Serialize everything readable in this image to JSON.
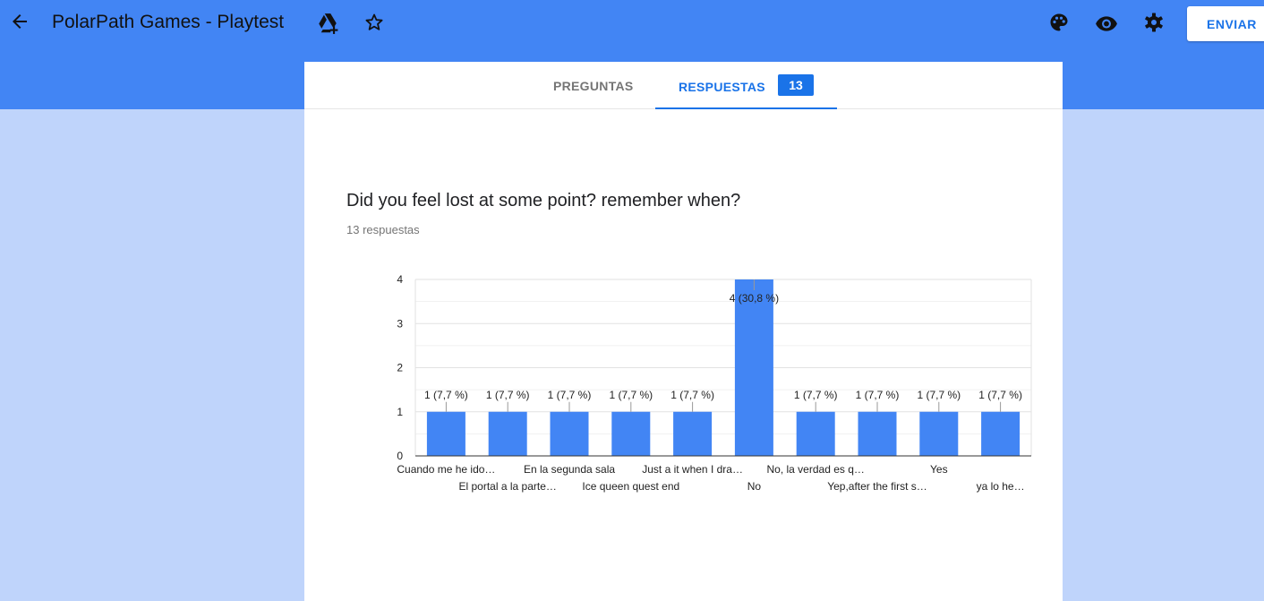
{
  "header": {
    "title": "PolarPath Games - Playtest",
    "send_label": "ENVIAR",
    "icons": [
      "back-arrow-icon",
      "drive-add-icon",
      "star-icon",
      "palette-icon",
      "eye-icon",
      "gear-icon"
    ]
  },
  "tabs": {
    "questions_label": "PREGUNTAS",
    "responses_label": "RESPUESTAS",
    "responses_count": "13"
  },
  "question": {
    "title": "Did you feel lost at some point? remember when?",
    "responses_text": "13 respuestas"
  },
  "colors": {
    "accent": "#1a73e8",
    "bar": "#4285f4",
    "header": "#4285f4",
    "page_bg": "#bfd4fb"
  },
  "chart_data": {
    "type": "bar",
    "categories": [
      "Cuando me he ido…",
      "El portal a la parte…",
      "En la segunda sala",
      "Ice queen quest end",
      "Just a it when I dra…",
      "No",
      "No, la verdad es q…",
      "Yep,after the first s…",
      "Yes",
      "ya lo he…"
    ],
    "values": [
      1,
      1,
      1,
      1,
      1,
      4,
      1,
      1,
      1,
      1
    ],
    "labels": [
      "1 (7,7 %)",
      "1 (7,7 %)",
      "1 (7,7 %)",
      "1 (7,7 %)",
      "1 (7,7 %)",
      "4 (30,8 %)",
      "1 (7,7 %)",
      "1 (7,7 %)",
      "1 (7,7 %)",
      "1 (7,7 %)"
    ],
    "yticks": [
      "0",
      "1",
      "2",
      "3",
      "4"
    ],
    "ylim": [
      0,
      4
    ],
    "grid": true,
    "legend": "none"
  }
}
